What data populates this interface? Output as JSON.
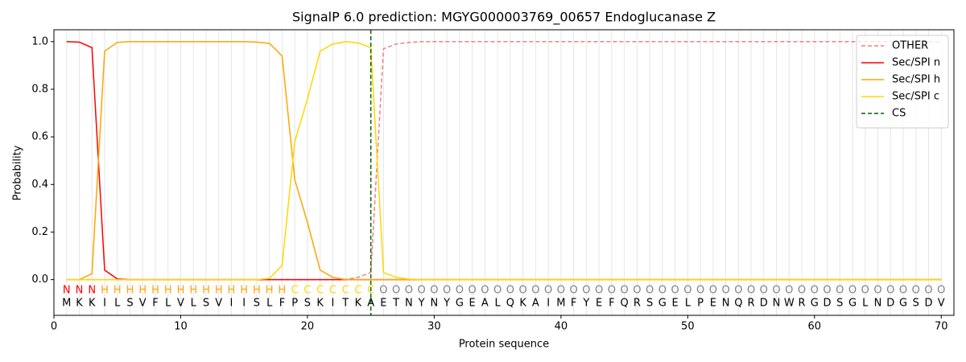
{
  "chart_data": {
    "type": "line",
    "title": "SignalP 6.0 prediction: MGYG000003769_00657 Endoglucanase Z",
    "x_label": "Protein sequence",
    "y_label": "Probability",
    "x": [
      1,
      2,
      3,
      4,
      5,
      6,
      7,
      8,
      9,
      10,
      11,
      12,
      13,
      14,
      15,
      16,
      17,
      18,
      19,
      20,
      21,
      22,
      23,
      24,
      25,
      26,
      27,
      28,
      29,
      30,
      31,
      32,
      33,
      34,
      35,
      36,
      37,
      38,
      39,
      40,
      41,
      42,
      43,
      44,
      45,
      46,
      47,
      48,
      49,
      50,
      51,
      52,
      53,
      54,
      55,
      56,
      57,
      58,
      59,
      60,
      61,
      62,
      63,
      64,
      65,
      66,
      67,
      68,
      69,
      70
    ],
    "sequence": [
      "M",
      "K",
      "K",
      "I",
      "L",
      "S",
      "V",
      "F",
      "L",
      "V",
      "L",
      "S",
      "V",
      "I",
      "I",
      "S",
      "L",
      "F",
      "P",
      "S",
      "K",
      "I",
      "T",
      "K",
      "A",
      "E",
      "T",
      "N",
      "Y",
      "N",
      "Y",
      "G",
      "E",
      "A",
      "L",
      "Q",
      "K",
      "A",
      "I",
      "M",
      "F",
      "Y",
      "E",
      "F",
      "Q",
      "R",
      "S",
      "G",
      "E",
      "L",
      "P",
      "E",
      "N",
      "Q",
      "R",
      "D",
      "N",
      "W",
      "R",
      "G",
      "D",
      "S",
      "G",
      "L",
      "N",
      "D",
      "G",
      "S",
      "D",
      "V"
    ],
    "labels": [
      "N",
      "N",
      "N",
      "H",
      "H",
      "H",
      "H",
      "H",
      "H",
      "H",
      "H",
      "H",
      "H",
      "H",
      "H",
      "H",
      "H",
      "H",
      "C",
      "C",
      "C",
      "C",
      "C",
      "C",
      "C",
      "O",
      "O",
      "O",
      "O",
      "O",
      "O",
      "O",
      "O",
      "O",
      "O",
      "O",
      "O",
      "O",
      "O",
      "O",
      "O",
      "O",
      "O",
      "O",
      "O",
      "O",
      "O",
      "O",
      "O",
      "O",
      "O",
      "O",
      "O",
      "O",
      "O",
      "O",
      "O",
      "O",
      "O",
      "O",
      "O",
      "O",
      "O",
      "O",
      "O",
      "O",
      "O",
      "O",
      "O",
      "O"
    ],
    "label_colors": {
      "N": "#ff0000",
      "H": "#ffa500",
      "C": "#ffd700",
      "O": "#808080"
    },
    "series": [
      {
        "name": "OTHER",
        "color": "#f08080",
        "dashed": true,
        "values": [
          0,
          0,
          0,
          0,
          0,
          0,
          0,
          0,
          0,
          0,
          0,
          0,
          0,
          0,
          0,
          0,
          0,
          0,
          0,
          0,
          0,
          0,
          0,
          0.01,
          0.03,
          0.97,
          0.99,
          0.997,
          1,
          1,
          1,
          1,
          1,
          1,
          1,
          1,
          1,
          1,
          1,
          1,
          1,
          1,
          1,
          1,
          1,
          1,
          1,
          1,
          1,
          1,
          1,
          1,
          1,
          1,
          1,
          1,
          1,
          1,
          1,
          1,
          1,
          1,
          1,
          1,
          1,
          1,
          1,
          1,
          1,
          1
        ]
      },
      {
        "name": "Sec/SPI n",
        "color": "#ff0000",
        "values": [
          1,
          0.998,
          0.975,
          0.04,
          0.003,
          0,
          0,
          0,
          0,
          0,
          0,
          0,
          0,
          0,
          0,
          0,
          0,
          0,
          0,
          0,
          0,
          0,
          0,
          0,
          0,
          0,
          0,
          0,
          0,
          0,
          0,
          0,
          0,
          0,
          0,
          0,
          0,
          0,
          0,
          0,
          0,
          0,
          0,
          0,
          0,
          0,
          0,
          0,
          0,
          0,
          0,
          0,
          0,
          0,
          0,
          0,
          0,
          0,
          0,
          0,
          0,
          0,
          0,
          0,
          0,
          0,
          0,
          0,
          0,
          0
        ]
      },
      {
        "name": "Sec/SPI h",
        "color": "#ffa500",
        "values": [
          0,
          0,
          0.025,
          0.96,
          0.997,
          1,
          1,
          1,
          1,
          1,
          1,
          1,
          1,
          1,
          1,
          0.998,
          0.993,
          0.94,
          0.42,
          0.24,
          0.04,
          0.01,
          0,
          0,
          0,
          0,
          0,
          0,
          0,
          0,
          0,
          0,
          0,
          0,
          0,
          0,
          0,
          0,
          0,
          0,
          0,
          0,
          0,
          0,
          0,
          0,
          0,
          0,
          0,
          0,
          0,
          0,
          0,
          0,
          0,
          0,
          0,
          0,
          0,
          0,
          0,
          0,
          0,
          0,
          0,
          0,
          0,
          0,
          0,
          0
        ]
      },
      {
        "name": "Sec/SPI c",
        "color": "#ffd700",
        "values": [
          0,
          0,
          0,
          0,
          0,
          0,
          0,
          0,
          0,
          0,
          0,
          0,
          0,
          0,
          0,
          0,
          0.005,
          0.06,
          0.58,
          0.76,
          0.96,
          0.99,
          1,
          0.995,
          0.975,
          0.03,
          0.01,
          0.002,
          0,
          0,
          0,
          0,
          0,
          0,
          0,
          0,
          0,
          0,
          0,
          0,
          0,
          0,
          0,
          0,
          0,
          0,
          0,
          0,
          0,
          0,
          0,
          0,
          0,
          0,
          0,
          0,
          0,
          0,
          0,
          0,
          0,
          0,
          0,
          0,
          0,
          0,
          0,
          0,
          0,
          0
        ]
      }
    ],
    "cs": {
      "name": "CS",
      "color": "#006400",
      "x": 25
    },
    "xlim": [
      0,
      71
    ],
    "ylim": [
      -0.15,
      1.05
    ],
    "xticks": [
      0,
      10,
      20,
      30,
      40,
      50,
      60,
      70
    ],
    "yticks": [
      {
        "value": 0,
        "label": "0.0"
      },
      {
        "value": 0.2,
        "label": "0.2"
      },
      {
        "value": 0.4,
        "label": "0.4"
      },
      {
        "value": 0.6,
        "label": "0.6"
      },
      {
        "value": 0.8,
        "label": "0.8"
      },
      {
        "value": 1,
        "label": "1.0"
      }
    ],
    "legend": "upper right"
  }
}
